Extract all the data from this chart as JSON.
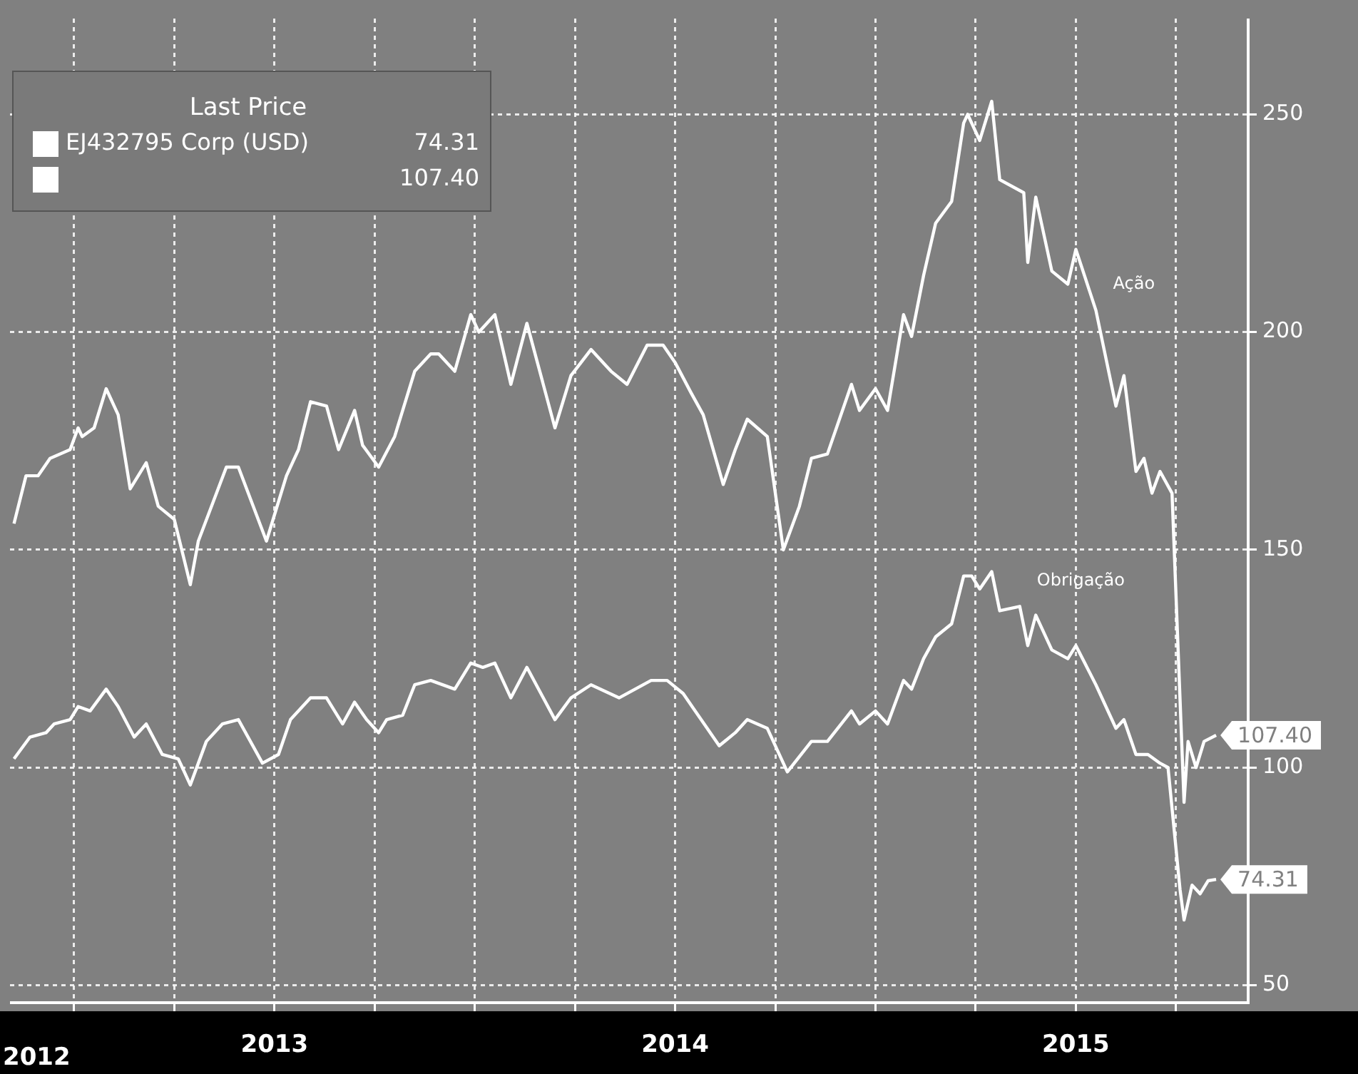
{
  "chart_data": {
    "type": "line",
    "legend": "top left",
    "legend_title": "Last Price",
    "grid": true,
    "marker": "none",
    "xlim": [
      2012.84,
      2015.93
    ],
    "xticks": [
      {
        "value": 2013,
        "label": null
      },
      {
        "value": 2013.25,
        "label": null
      },
      {
        "value": 2013.5,
        "label": "2013"
      },
      {
        "value": 2013.75,
        "label": null
      },
      {
        "value": 2014,
        "label": null
      },
      {
        "value": 2014.25,
        "label": null
      },
      {
        "value": 2014.5,
        "label": "2014"
      },
      {
        "value": 2014.75,
        "label": null
      },
      {
        "value": 2015,
        "label": null
      },
      {
        "value": 2015.25,
        "label": null
      },
      {
        "value": 2015.5,
        "label": "2015"
      },
      {
        "value": 2015.75,
        "label": null
      }
    ],
    "ylim": [
      46,
      272
    ],
    "yticks": [
      50,
      100,
      150,
      200,
      250
    ],
    "annotations": [
      "2012",
      {
        "text": "Ação",
        "x": 2015.55,
        "y": 205
      },
      {
        "text": "Obrigação",
        "x": 2015.36,
        "y": 137
      }
    ],
    "series": [
      {
        "name": "EJ432795 Corp (USD)",
        "color": "#ffffff",
        "x": [
          2012.85,
          2012.89,
          2012.93,
          2012.95,
          2012.99,
          2013.01,
          2013.04,
          2013.08,
          2013.11,
          2013.15,
          2013.18,
          2013.22,
          2013.26,
          2013.29,
          2013.33,
          2013.37,
          2013.41,
          2013.47,
          2013.51,
          2013.54,
          2013.59,
          2013.63,
          2013.67,
          2013.7,
          2013.73,
          2013.76,
          2013.78,
          2013.82,
          2013.85,
          2013.89,
          2013.95,
          2013.99,
          2014.02,
          2014.05,
          2014.09,
          2014.13,
          2014.2,
          2014.24,
          2014.29,
          2014.36,
          2014.44,
          2014.48,
          2014.52,
          2014.55,
          2014.61,
          2014.65,
          2014.68,
          2014.73,
          2014.78,
          2014.84,
          2014.88,
          2014.94,
          2014.96,
          2015.0,
          2015.03,
          2015.07,
          2015.09,
          2015.12,
          2015.15,
          2015.19,
          2015.22,
          2015.24,
          2015.26,
          2015.29,
          2015.31,
          2015.36,
          2015.38,
          2015.4,
          2015.44,
          2015.48,
          2015.5,
          2015.55,
          2015.6,
          2015.62,
          2015.65,
          2015.68,
          2015.71,
          2015.73,
          2015.76,
          2015.77,
          2015.79,
          2015.81,
          2015.83,
          2015.85
        ],
        "values": [
          102,
          107,
          108,
          110,
          111,
          114,
          113,
          118,
          114,
          107,
          110,
          103,
          102,
          96,
          106,
          110,
          111,
          101,
          103,
          111,
          116,
          116,
          110,
          115,
          111,
          108,
          111,
          112,
          119,
          120,
          118,
          124,
          123,
          124,
          116,
          123,
          111,
          116,
          119,
          116,
          120,
          120,
          117,
          113,
          105,
          108,
          111,
          109,
          99,
          106,
          106,
          113,
          110,
          113,
          110,
          120,
          118,
          125,
          130,
          133,
          144,
          144,
          141,
          145,
          136,
          137,
          128,
          135,
          127,
          125,
          128,
          119,
          109,
          111,
          103,
          103,
          101,
          100,
          72,
          65,
          73,
          71,
          74,
          74.31
        ],
        "value_labels": [
          null,
          null,
          null,
          null,
          null,
          null,
          null,
          null,
          null,
          null,
          null,
          null,
          null,
          null,
          null,
          null,
          null,
          null,
          null,
          null,
          null,
          null,
          null,
          null,
          null,
          null,
          null,
          null,
          null,
          null,
          null,
          null,
          null,
          null,
          null,
          null,
          null,
          null,
          null,
          null,
          null,
          null,
          null,
          null,
          null,
          null,
          null,
          null,
          null,
          null,
          null,
          null,
          null,
          null,
          null,
          null,
          null,
          null,
          null,
          null,
          null,
          null,
          null,
          null,
          null,
          null,
          null,
          null,
          null,
          null,
          null,
          null,
          null,
          null,
          null,
          null,
          null,
          null,
          null,
          null,
          null,
          null,
          null,
          "74.31"
        ]
      },
      {
        "color": "#ffffff",
        "x": [
          2012.85,
          2012.88,
          2012.91,
          2012.94,
          2012.99,
          2013.01,
          2013.02,
          2013.05,
          2013.08,
          2013.11,
          2013.14,
          2013.18,
          2013.21,
          2013.25,
          2013.29,
          2013.31,
          2013.38,
          2013.41,
          2013.48,
          2013.53,
          2013.56,
          2013.59,
          2013.63,
          2013.66,
          2013.7,
          2013.72,
          2013.76,
          2013.8,
          2013.85,
          2013.89,
          2013.91,
          2013.95,
          2013.99,
          2014.01,
          2014.05,
          2014.09,
          2014.13,
          2014.2,
          2014.24,
          2014.29,
          2014.34,
          2014.38,
          2014.43,
          2014.47,
          2014.5,
          2014.54,
          2014.57,
          2014.62,
          2014.65,
          2014.68,
          2014.73,
          2014.77,
          2014.81,
          2014.84,
          2014.88,
          2014.94,
          2014.96,
          2015.0,
          2015.03,
          2015.07,
          2015.09,
          2015.12,
          2015.15,
          2015.19,
          2015.22,
          2015.23,
          2015.26,
          2015.29,
          2015.31,
          2015.37,
          2015.38,
          2015.4,
          2015.44,
          2015.48,
          2015.5,
          2015.55,
          2015.6,
          2015.62,
          2015.65,
          2015.67,
          2015.69,
          2015.71,
          2015.74,
          2015.77,
          2015.78,
          2015.8,
          2015.82,
          2015.85
        ],
        "values": [
          156,
          167,
          167,
          171,
          173,
          178,
          176,
          178,
          187,
          181,
          164,
          170,
          160,
          157,
          142,
          152,
          169,
          169,
          152,
          167,
          173,
          184,
          183,
          173,
          182,
          174,
          169,
          176,
          191,
          195,
          195,
          191,
          204,
          200,
          204,
          188,
          202,
          178,
          190,
          196,
          191,
          188,
          197,
          197,
          193,
          186,
          181,
          165,
          173,
          180,
          176,
          150,
          160,
          171,
          172,
          188,
          182,
          187,
          182,
          204,
          199,
          213,
          225,
          230,
          248,
          250,
          244,
          253,
          235,
          232,
          216,
          231,
          214,
          211,
          219,
          205,
          183,
          190,
          168,
          171,
          163,
          168,
          163,
          92,
          106,
          100,
          106,
          107.4
        ],
        "value_labels": [
          null,
          null,
          null,
          null,
          null,
          null,
          null,
          null,
          null,
          null,
          null,
          null,
          null,
          null,
          null,
          null,
          null,
          null,
          null,
          null,
          null,
          null,
          null,
          null,
          null,
          null,
          null,
          null,
          null,
          null,
          null,
          null,
          null,
          null,
          null,
          null,
          null,
          null,
          null,
          null,
          null,
          null,
          null,
          null,
          null,
          null,
          null,
          null,
          null,
          null,
          null,
          null,
          null,
          null,
          null,
          null,
          null,
          null,
          null,
          null,
          null,
          null,
          null,
          null,
          null,
          null,
          null,
          null,
          null,
          null,
          null,
          null,
          null,
          null,
          null,
          null,
          null,
          null,
          null,
          null,
          null,
          null,
          null,
          null,
          null,
          null,
          null,
          "107.40"
        ]
      }
    ]
  }
}
